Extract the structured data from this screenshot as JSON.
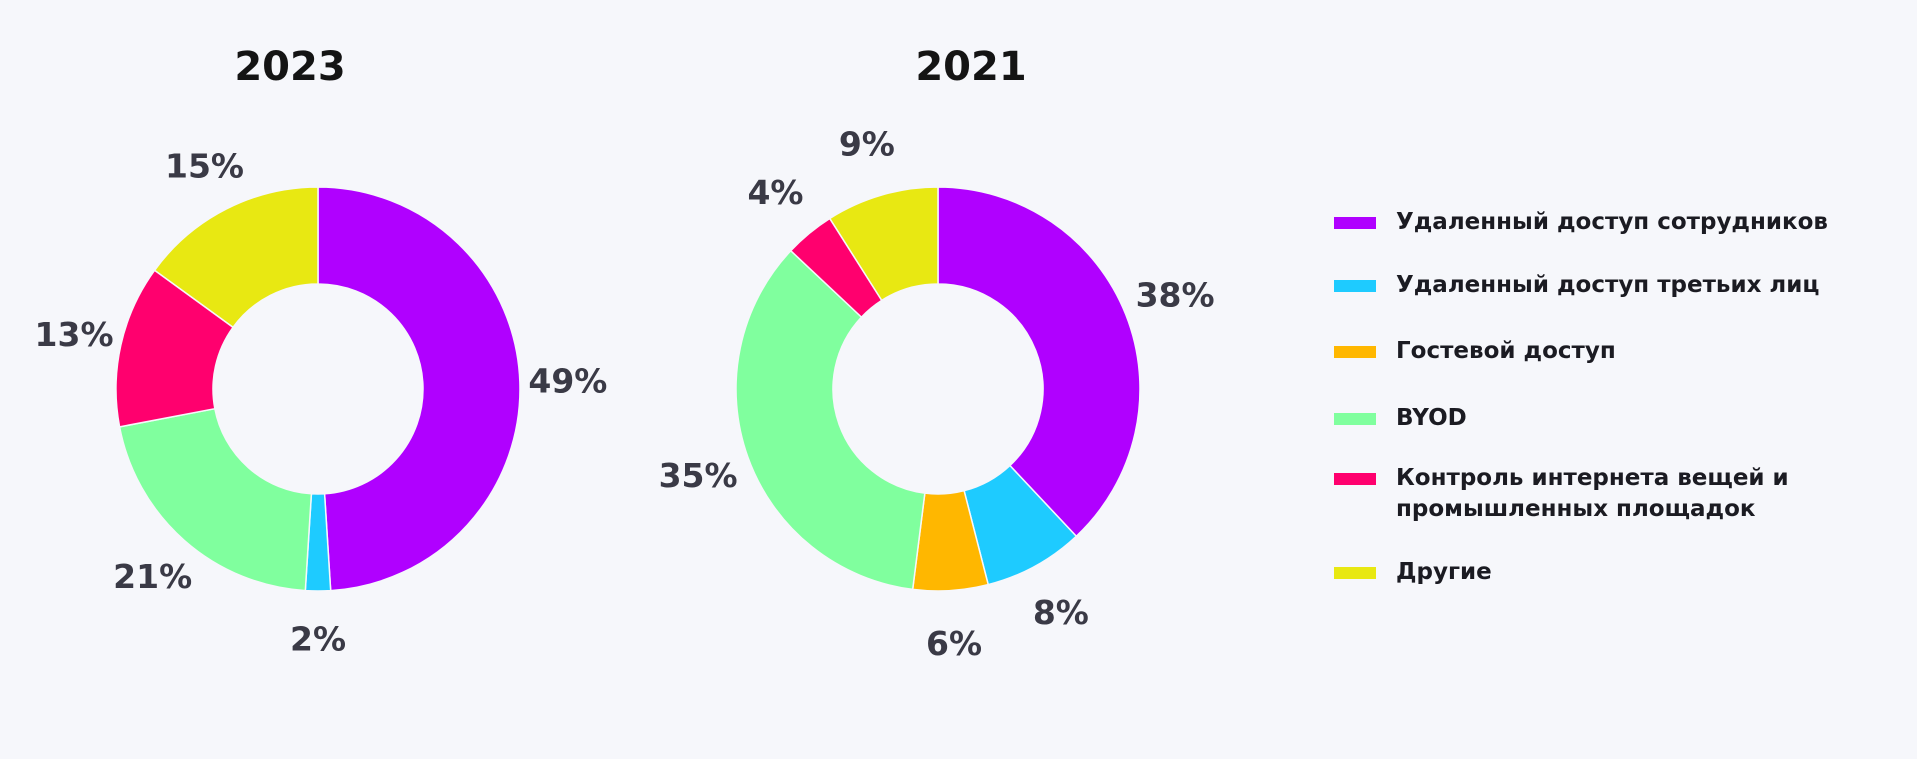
{
  "chart_data": [
    {
      "type": "pie",
      "title": "2023",
      "categories": [
        "Удаленный доступ сотрудников",
        "Удаленный доступ третьих лиц",
        "BYOD",
        "Контроль интернета вещей и промышленных площадок",
        "Другие"
      ],
      "values": [
        49,
        2,
        21,
        13,
        15
      ],
      "labels": [
        "49%",
        "2%",
        "21%",
        "13%",
        "15%"
      ],
      "colors": [
        "#b000ff",
        "#1ecbff",
        "#80ff9e",
        "#ff006e",
        "#e8e812"
      ]
    },
    {
      "type": "pie",
      "title": "2021",
      "categories": [
        "Удаленный доступ сотрудников",
        "Удаленный доступ третьих лиц",
        "Гостевой доступ",
        "BYOD",
        "Контроль интернета вещей и промышленных площадок",
        "Другие"
      ],
      "values": [
        38,
        8,
        6,
        35,
        4,
        9
      ],
      "labels": [
        "38%",
        "8%",
        "6%",
        "35%",
        "4%",
        "9%"
      ],
      "colors": [
        "#b000ff",
        "#1ecbff",
        "#ffb700",
        "#80ff9e",
        "#ff006e",
        "#e8e812"
      ]
    }
  ],
  "legend": {
    "placement": "right",
    "items": [
      {
        "label": "Удаленный доступ сотрудников",
        "color": "#b000ff"
      },
      {
        "label": "Удаленный доступ третьих лиц",
        "color": "#1ecbff"
      },
      {
        "label": "Гостевой доступ",
        "color": "#ffb700"
      },
      {
        "label": "BYOD",
        "color": "#80ff9e"
      },
      {
        "label": "Контроль интернета вещей и\nпромышленных площадок",
        "color": "#ff006e"
      },
      {
        "label": "Другие",
        "color": "#e8e812"
      }
    ]
  }
}
